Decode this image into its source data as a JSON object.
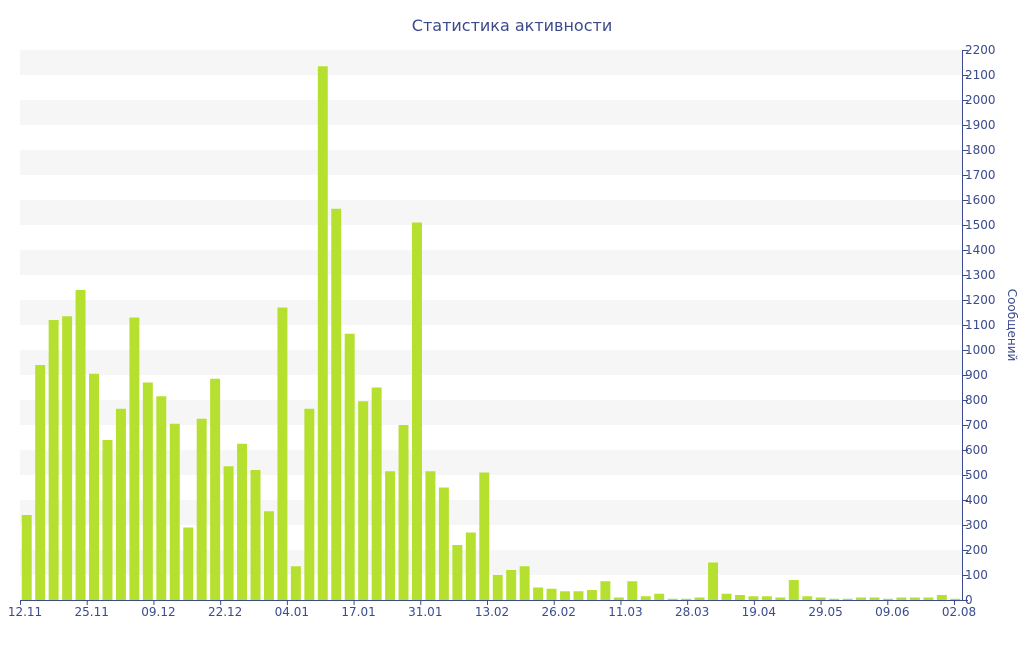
{
  "chart_data": {
    "type": "bar",
    "title": "Статистика активности",
    "ylabel": "Сообщений",
    "xlabel": "",
    "ylim": [
      0,
      2200
    ],
    "y_ticks": [
      0,
      100,
      200,
      300,
      400,
      500,
      600,
      700,
      800,
      900,
      1000,
      1100,
      1200,
      1300,
      1400,
      1500,
      1600,
      1700,
      1800,
      1900,
      2000,
      2100,
      2200
    ],
    "y_axis_side": "right",
    "grid": "alternating horizontal bands",
    "legend": "none",
    "bar_color": "#b5e02f",
    "x_tick_labels": [
      "12.11",
      "25.11",
      "09.12",
      "22.12",
      "04.01",
      "17.01",
      "31.01",
      "13.02",
      "26.02",
      "11.03",
      "28.03",
      "19.04",
      "29.05",
      "09.06",
      "02.08"
    ],
    "values": [
      340,
      940,
      1120,
      1135,
      1240,
      905,
      640,
      765,
      1130,
      870,
      815,
      705,
      290,
      725,
      885,
      535,
      625,
      520,
      355,
      1170,
      135,
      765,
      2135,
      1565,
      1065,
      795,
      850,
      515,
      700,
      1510,
      515,
      450,
      220,
      270,
      510,
      100,
      120,
      135,
      50,
      45,
      35,
      35,
      40,
      75,
      10,
      75,
      15,
      25,
      5,
      5,
      10,
      150,
      25,
      20,
      15,
      15,
      10,
      80,
      15,
      10,
      5,
      5,
      10,
      10,
      5,
      10,
      10,
      10,
      20,
      5
    ]
  }
}
